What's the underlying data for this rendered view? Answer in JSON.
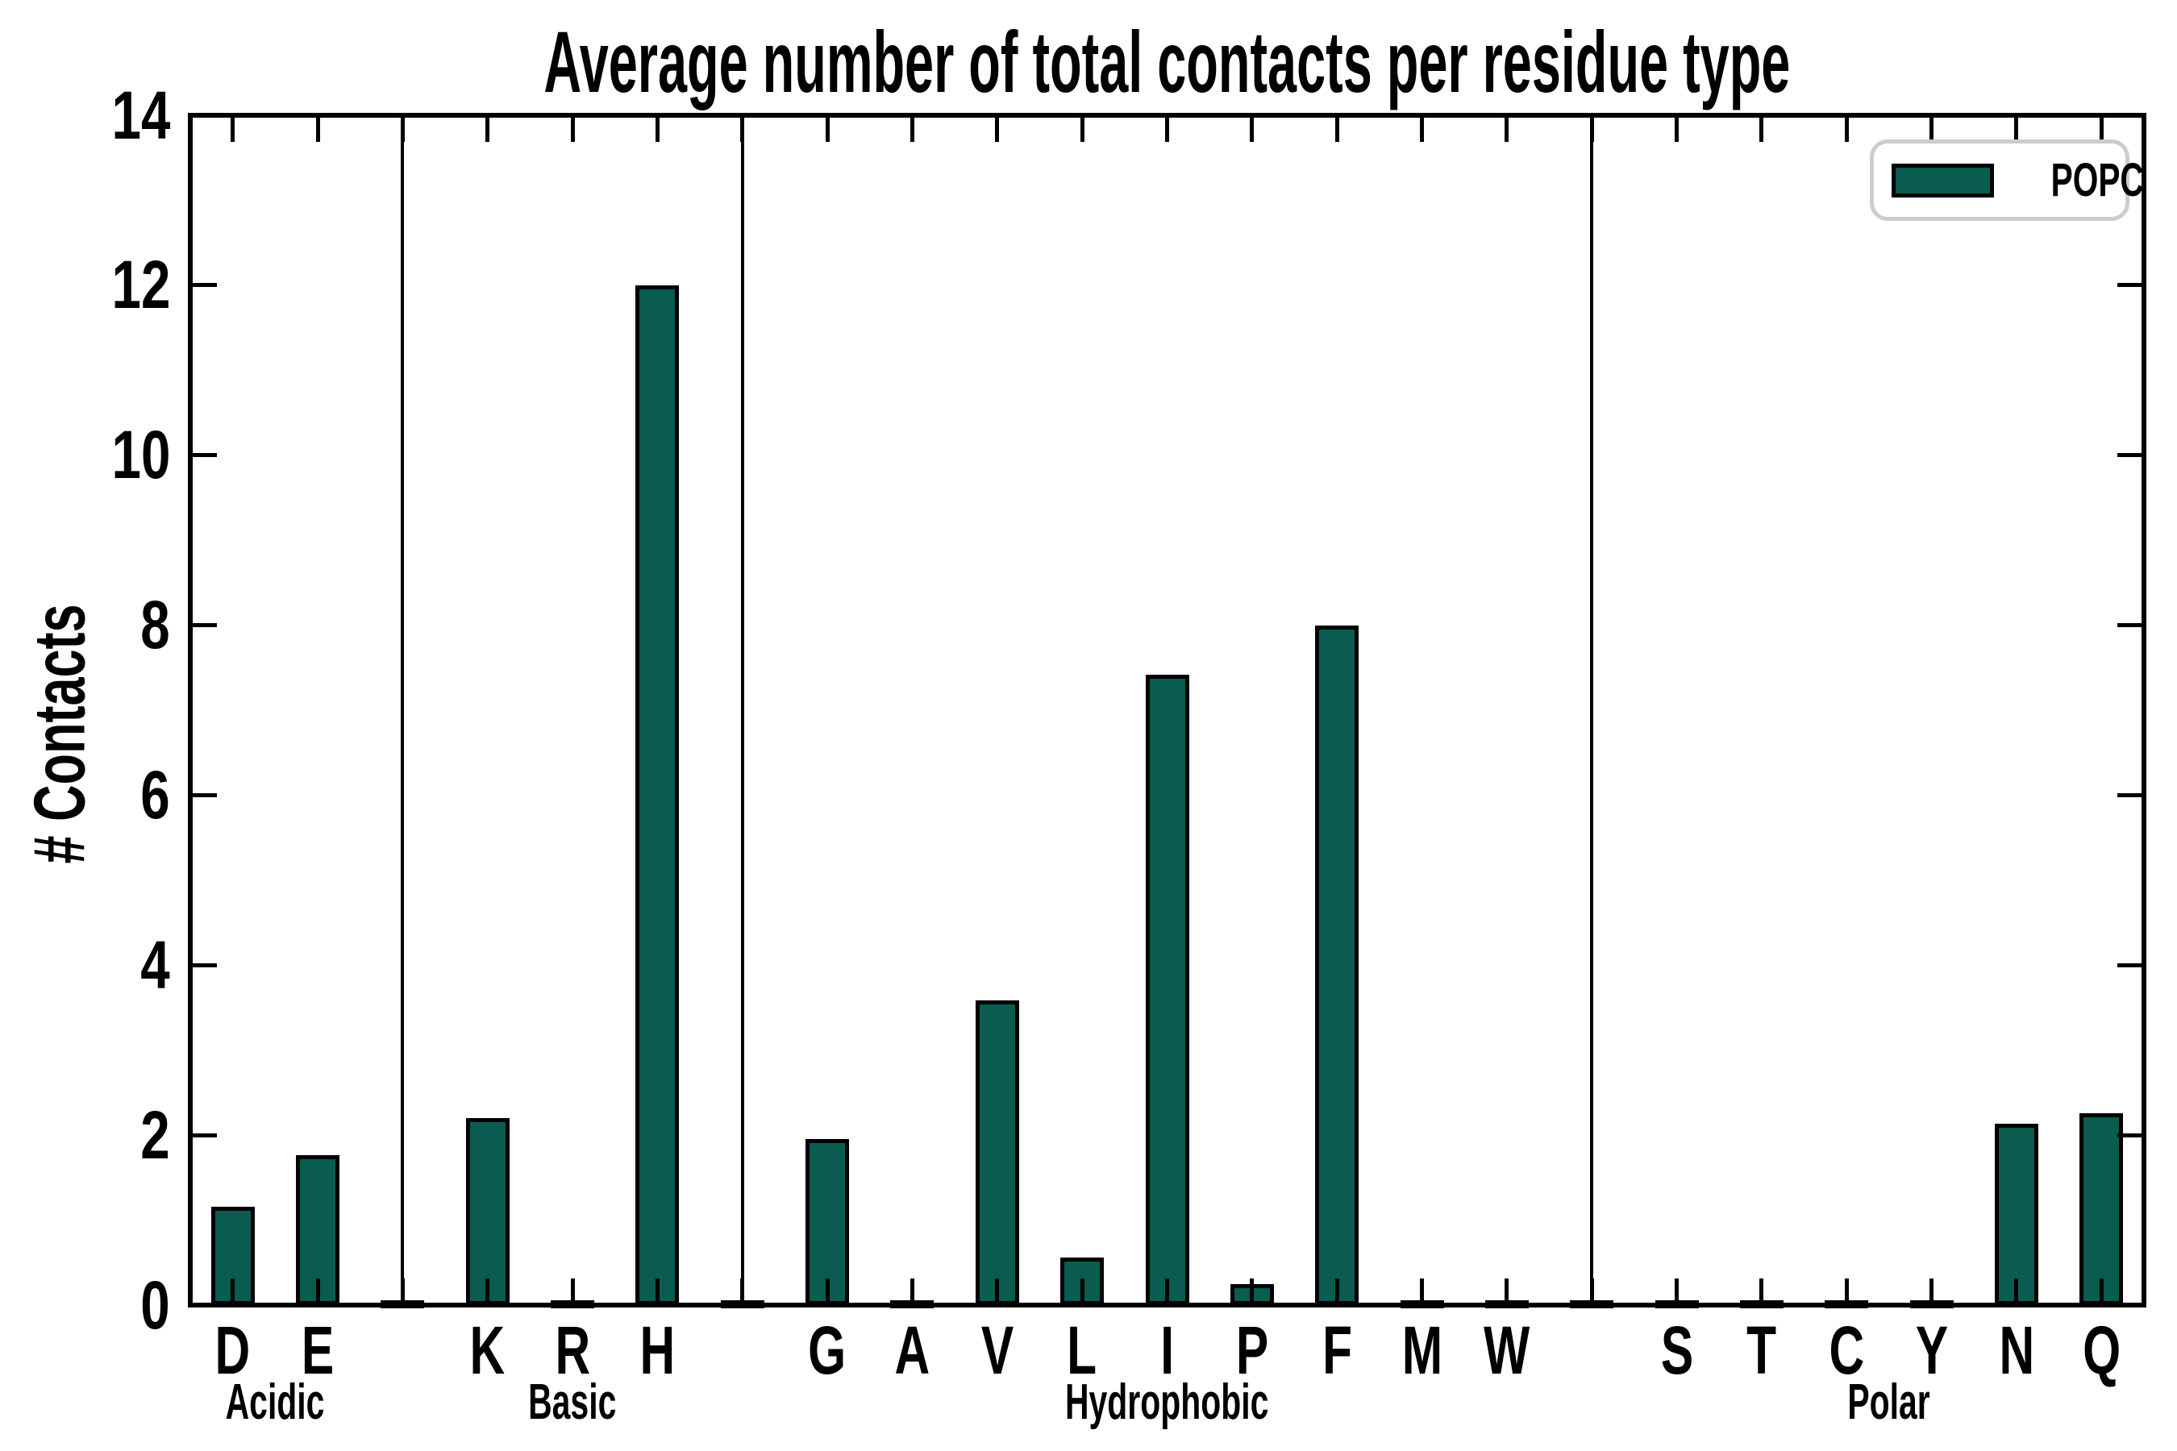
{
  "chart_data": {
    "type": "bar",
    "title": "Average number of total contacts per residue type",
    "xlabel": "",
    "ylabel": "# Contacts",
    "ylim": [
      0,
      14
    ],
    "yticks": [
      0,
      2,
      4,
      6,
      8,
      10,
      12,
      14
    ],
    "grid": false,
    "legend_label": "POPC",
    "legend_position": "upper right",
    "series_name": "POPC",
    "groups": [
      {
        "label": "Acidic",
        "categories": [
          "D",
          "E"
        ],
        "values": [
          1.16,
          1.76
        ]
      },
      {
        "label": "Basic",
        "categories": [
          "K",
          "R",
          "H"
        ],
        "values": [
          2.2,
          0.03,
          12.0
        ]
      },
      {
        "label": "Hydrophobic",
        "categories": [
          "G",
          "A",
          "V",
          "L",
          "I",
          "P",
          "F",
          "M",
          "W"
        ],
        "values": [
          1.95,
          0.03,
          3.59,
          0.56,
          7.42,
          0.25,
          8.0,
          0.02,
          0.02
        ]
      },
      {
        "label": "Polar",
        "categories": [
          "S",
          "T",
          "C",
          "Y",
          "N",
          "Q"
        ],
        "values": [
          0.02,
          0.02,
          0.02,
          0.02,
          2.13,
          2.26
        ]
      }
    ]
  },
  "colors": {
    "bar_fill": "#0A5C50",
    "bar_edge": "#000000",
    "axis": "#000000",
    "legend_border": "#CCCCCC",
    "background": "#FFFFFF"
  }
}
